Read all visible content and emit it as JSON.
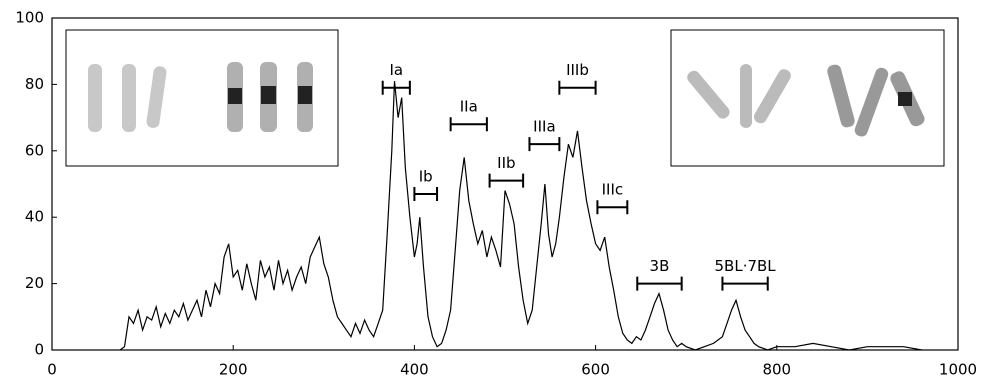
{
  "chart_data": {
    "type": "line",
    "color": "#000000",
    "x": [
      75,
      80,
      85,
      90,
      95,
      100,
      105,
      110,
      115,
      120,
      125,
      130,
      135,
      140,
      145,
      150,
      155,
      160,
      165,
      170,
      175,
      180,
      185,
      190,
      195,
      200,
      205,
      210,
      215,
      220,
      225,
      230,
      235,
      240,
      245,
      250,
      255,
      260,
      265,
      270,
      275,
      280,
      285,
      290,
      295,
      300,
      305,
      310,
      315,
      320,
      325,
      330,
      335,
      340,
      345,
      350,
      355,
      360,
      365,
      370,
      375,
      378,
      382,
      386,
      390,
      395,
      400,
      403,
      406,
      410,
      415,
      420,
      425,
      430,
      435,
      440,
      445,
      450,
      455,
      460,
      465,
      470,
      475,
      480,
      485,
      490,
      495,
      500,
      505,
      510,
      515,
      520,
      525,
      530,
      535,
      540,
      544,
      548,
      552,
      556,
      560,
      565,
      570,
      575,
      580,
      585,
      590,
      595,
      600,
      605,
      610,
      615,
      620,
      625,
      630,
      635,
      640,
      645,
      650,
      655,
      660,
      665,
      670,
      675,
      680,
      685,
      690,
      695,
      700,
      710,
      720,
      730,
      740,
      745,
      750,
      755,
      760,
      765,
      770,
      775,
      780,
      790,
      800,
      820,
      840,
      860,
      880,
      900,
      920,
      940,
      960
    ],
    "values": [
      0,
      1,
      10,
      8,
      12,
      6,
      10,
      9,
      13,
      7,
      11,
      8,
      12,
      10,
      14,
      9,
      12,
      15,
      10,
      18,
      13,
      20,
      17,
      28,
      32,
      22,
      24,
      18,
      26,
      20,
      15,
      27,
      22,
      25,
      18,
      27,
      20,
      24,
      18,
      22,
      25,
      20,
      28,
      31,
      34,
      26,
      22,
      15,
      10,
      8,
      6,
      4,
      8,
      5,
      9,
      6,
      4,
      8,
      12,
      35,
      60,
      81,
      70,
      76,
      55,
      40,
      28,
      32,
      40,
      25,
      10,
      4,
      1,
      2,
      6,
      12,
      30,
      48,
      58,
      45,
      38,
      32,
      36,
      28,
      34,
      30,
      25,
      48,
      44,
      38,
      25,
      15,
      8,
      12,
      25,
      38,
      50,
      35,
      28,
      32,
      40,
      52,
      62,
      58,
      66,
      55,
      45,
      38,
      32,
      30,
      34,
      25,
      18,
      10,
      5,
      3,
      2,
      4,
      3,
      6,
      10,
      14,
      17,
      12,
      6,
      3,
      1,
      2,
      1,
      0,
      1,
      2,
      4,
      8,
      12,
      15,
      10,
      6,
      4,
      2,
      1,
      0,
      1,
      1,
      2,
      1,
      0,
      1,
      1,
      1,
      0
    ],
    "xlim": [
      0,
      1000
    ],
    "xticks": [
      0,
      200,
      400,
      600,
      800,
      1000
    ],
    "ylim": [
      0,
      100
    ],
    "yticks": [
      0,
      20,
      40,
      60,
      80,
      100
    ],
    "annotations": [
      {
        "text": "Ia",
        "x": [
          365,
          395
        ],
        "y": 79
      },
      {
        "text": "Ib",
        "x": [
          400,
          425
        ],
        "y": 47
      },
      {
        "text": "IIa",
        "x": [
          440,
          480
        ],
        "y": 68
      },
      {
        "text": "IIb",
        "x": [
          483,
          520
        ],
        "y": 51
      },
      {
        "text": "IIIa",
        "x": [
          527,
          560
        ],
        "y": 62
      },
      {
        "text": "IIIb",
        "x": [
          560,
          600
        ],
        "y": 79
      },
      {
        "text": "IIIc",
        "x": [
          602,
          635
        ],
        "y": 43
      },
      {
        "text": "3B",
        "x": [
          646,
          695
        ],
        "y": 20
      },
      {
        "text": "5BL·7BL",
        "x": [
          740,
          790
        ],
        "y": 20
      }
    ]
  }
}
